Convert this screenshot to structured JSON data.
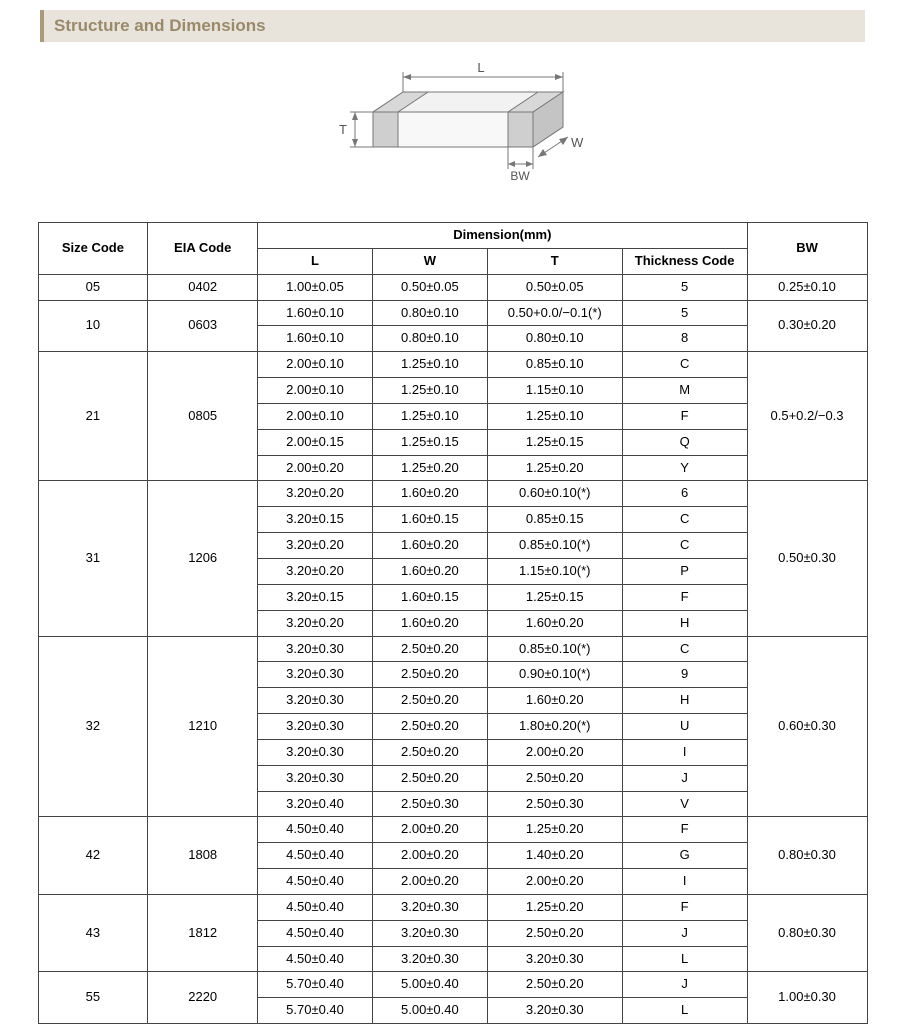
{
  "header": {
    "title": "Structure and Dimensions"
  },
  "diagram": {
    "labels": {
      "L": "L",
      "W": "W",
      "T": "T",
      "BW": "BW"
    },
    "stroke": "#777777",
    "fill_top": "#f2f2f2",
    "fill_side": "#e0e0e0",
    "fill_band": "#cfcfcf"
  },
  "table": {
    "headers": {
      "size_code": "Size Code",
      "eia_code": "EIA Code",
      "dimension": "Dimension(mm)",
      "L": "L",
      "W": "W",
      "T": "T",
      "thickness_code": "Thickness Code",
      "BW": "BW"
    },
    "groups": [
      {
        "size_code": "05",
        "eia_code": "0402",
        "bw": "0.25±0.10",
        "rows": [
          {
            "L": "1.00±0.05",
            "W": "0.50±0.05",
            "T": "0.50±0.05",
            "tc": "5"
          }
        ]
      },
      {
        "size_code": "10",
        "eia_code": "0603",
        "bw": "0.30±0.20",
        "rows": [
          {
            "L": "1.60±0.10",
            "W": "0.80±0.10",
            "T": "0.50+0.0/−0.1(*)",
            "tc": "5"
          },
          {
            "L": "1.60±0.10",
            "W": "0.80±0.10",
            "T": "0.80±0.10",
            "tc": "8"
          }
        ]
      },
      {
        "size_code": "21",
        "eia_code": "0805",
        "bw": "0.5+0.2/−0.3",
        "rows": [
          {
            "L": "2.00±0.10",
            "W": "1.25±0.10",
            "T": "0.85±0.10",
            "tc": "C"
          },
          {
            "L": "2.00±0.10",
            "W": "1.25±0.10",
            "T": "1.15±0.10",
            "tc": "M"
          },
          {
            "L": "2.00±0.10",
            "W": "1.25±0.10",
            "T": "1.25±0.10",
            "tc": "F"
          },
          {
            "L": "2.00±0.15",
            "W": "1.25±0.15",
            "T": "1.25±0.15",
            "tc": "Q"
          },
          {
            "L": "2.00±0.20",
            "W": "1.25±0.20",
            "T": "1.25±0.20",
            "tc": "Y"
          }
        ]
      },
      {
        "size_code": "31",
        "eia_code": "1206",
        "bw": "0.50±0.30",
        "rows": [
          {
            "L": "3.20±0.20",
            "W": "1.60±0.20",
            "T": "0.60±0.10(*)",
            "tc": "6"
          },
          {
            "L": "3.20±0.15",
            "W": "1.60±0.15",
            "T": "0.85±0.15",
            "tc": "C"
          },
          {
            "L": "3.20±0.20",
            "W": "1.60±0.20",
            "T": "0.85±0.10(*)",
            "tc": "C"
          },
          {
            "L": "3.20±0.20",
            "W": "1.60±0.20",
            "T": "1.15±0.10(*)",
            "tc": "P"
          },
          {
            "L": "3.20±0.15",
            "W": "1.60±0.15",
            "T": "1.25±0.15",
            "tc": "F"
          },
          {
            "L": "3.20±0.20",
            "W": "1.60±0.20",
            "T": "1.60±0.20",
            "tc": "H"
          }
        ]
      },
      {
        "size_code": "32",
        "eia_code": "1210",
        "bw": "0.60±0.30",
        "rows": [
          {
            "L": "3.20±0.30",
            "W": "2.50±0.20",
            "T": "0.85±0.10(*)",
            "tc": "C"
          },
          {
            "L": "3.20±0.30",
            "W": "2.50±0.20",
            "T": "0.90±0.10(*)",
            "tc": "9"
          },
          {
            "L": "3.20±0.30",
            "W": "2.50±0.20",
            "T": "1.60±0.20",
            "tc": "H"
          },
          {
            "L": "3.20±0.30",
            "W": "2.50±0.20",
            "T": "1.80±0.20(*)",
            "tc": "U"
          },
          {
            "L": "3.20±0.30",
            "W": "2.50±0.20",
            "T": "2.00±0.20",
            "tc": "I"
          },
          {
            "L": "3.20±0.30",
            "W": "2.50±0.20",
            "T": "2.50±0.20",
            "tc": "J"
          },
          {
            "L": "3.20±0.40",
            "W": "2.50±0.30",
            "T": "2.50±0.30",
            "tc": "V"
          }
        ]
      },
      {
        "size_code": "42",
        "eia_code": "1808",
        "bw": "0.80±0.30",
        "rows": [
          {
            "L": "4.50±0.40",
            "W": "2.00±0.20",
            "T": "1.25±0.20",
            "tc": "F"
          },
          {
            "L": "4.50±0.40",
            "W": "2.00±0.20",
            "T": "1.40±0.20",
            "tc": "G"
          },
          {
            "L": "4.50±0.40",
            "W": "2.00±0.20",
            "T": "2.00±0.20",
            "tc": "I"
          }
        ]
      },
      {
        "size_code": "43",
        "eia_code": "1812",
        "bw": "0.80±0.30",
        "rows": [
          {
            "L": "4.50±0.40",
            "W": "3.20±0.30",
            "T": "1.25±0.20",
            "tc": "F"
          },
          {
            "L": "4.50±0.40",
            "W": "3.20±0.30",
            "T": "2.50±0.20",
            "tc": "J"
          },
          {
            "L": "4.50±0.40",
            "W": "3.20±0.30",
            "T": "3.20±0.30",
            "tc": "L"
          }
        ]
      },
      {
        "size_code": "55",
        "eia_code": "2220",
        "bw": "1.00±0.30",
        "rows": [
          {
            "L": "5.70±0.40",
            "W": "5.00±0.40",
            "T": "2.50±0.20",
            "tc": "J"
          },
          {
            "L": "5.70±0.40",
            "W": "5.00±0.40",
            "T": "3.20±0.30",
            "tc": "L"
          }
        ]
      }
    ],
    "col_widths": {
      "size_code": 110,
      "eia_code": 110,
      "L": 115,
      "W": 115,
      "T": 135,
      "tc": 125,
      "bw": 120
    },
    "border_color": "#444444",
    "font_size": 13
  }
}
